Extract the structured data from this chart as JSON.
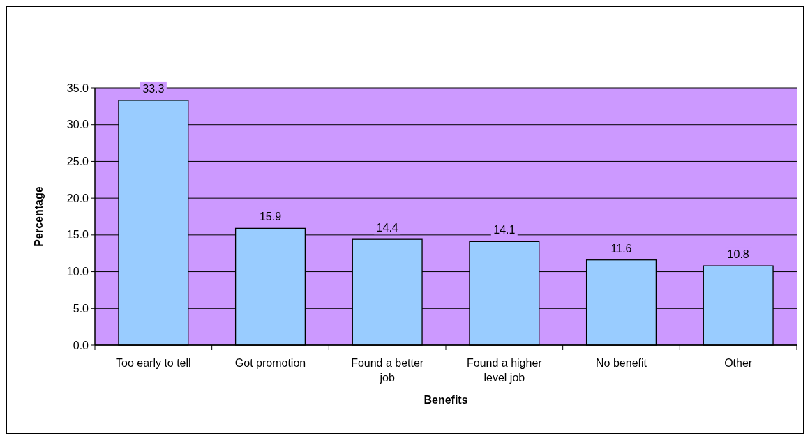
{
  "chart_data": {
    "type": "bar",
    "categories": [
      "Too early to tell",
      "Got promotion",
      "Found a better job",
      "Found a higher level job",
      "No benefit",
      "Other"
    ],
    "values": [
      33.3,
      15.9,
      14.4,
      14.1,
      11.6,
      10.8
    ],
    "color": "#99ccff",
    "xlabel": "Benefits",
    "ylabel": "Percentage",
    "ylim": [
      0,
      35
    ],
    "yticks": [
      {
        "value": 0,
        "label": "0.0"
      },
      {
        "value": 5,
        "label": "5.0"
      },
      {
        "value": 10,
        "label": "10.0"
      },
      {
        "value": 15,
        "label": "15.0"
      },
      {
        "value": 20,
        "label": "20.0"
      },
      {
        "value": 25,
        "label": "25.0"
      },
      {
        "value": 30,
        "label": "30.0"
      },
      {
        "value": 35,
        "label": "35.0"
      }
    ],
    "grid": "y",
    "data_labels": true
  }
}
